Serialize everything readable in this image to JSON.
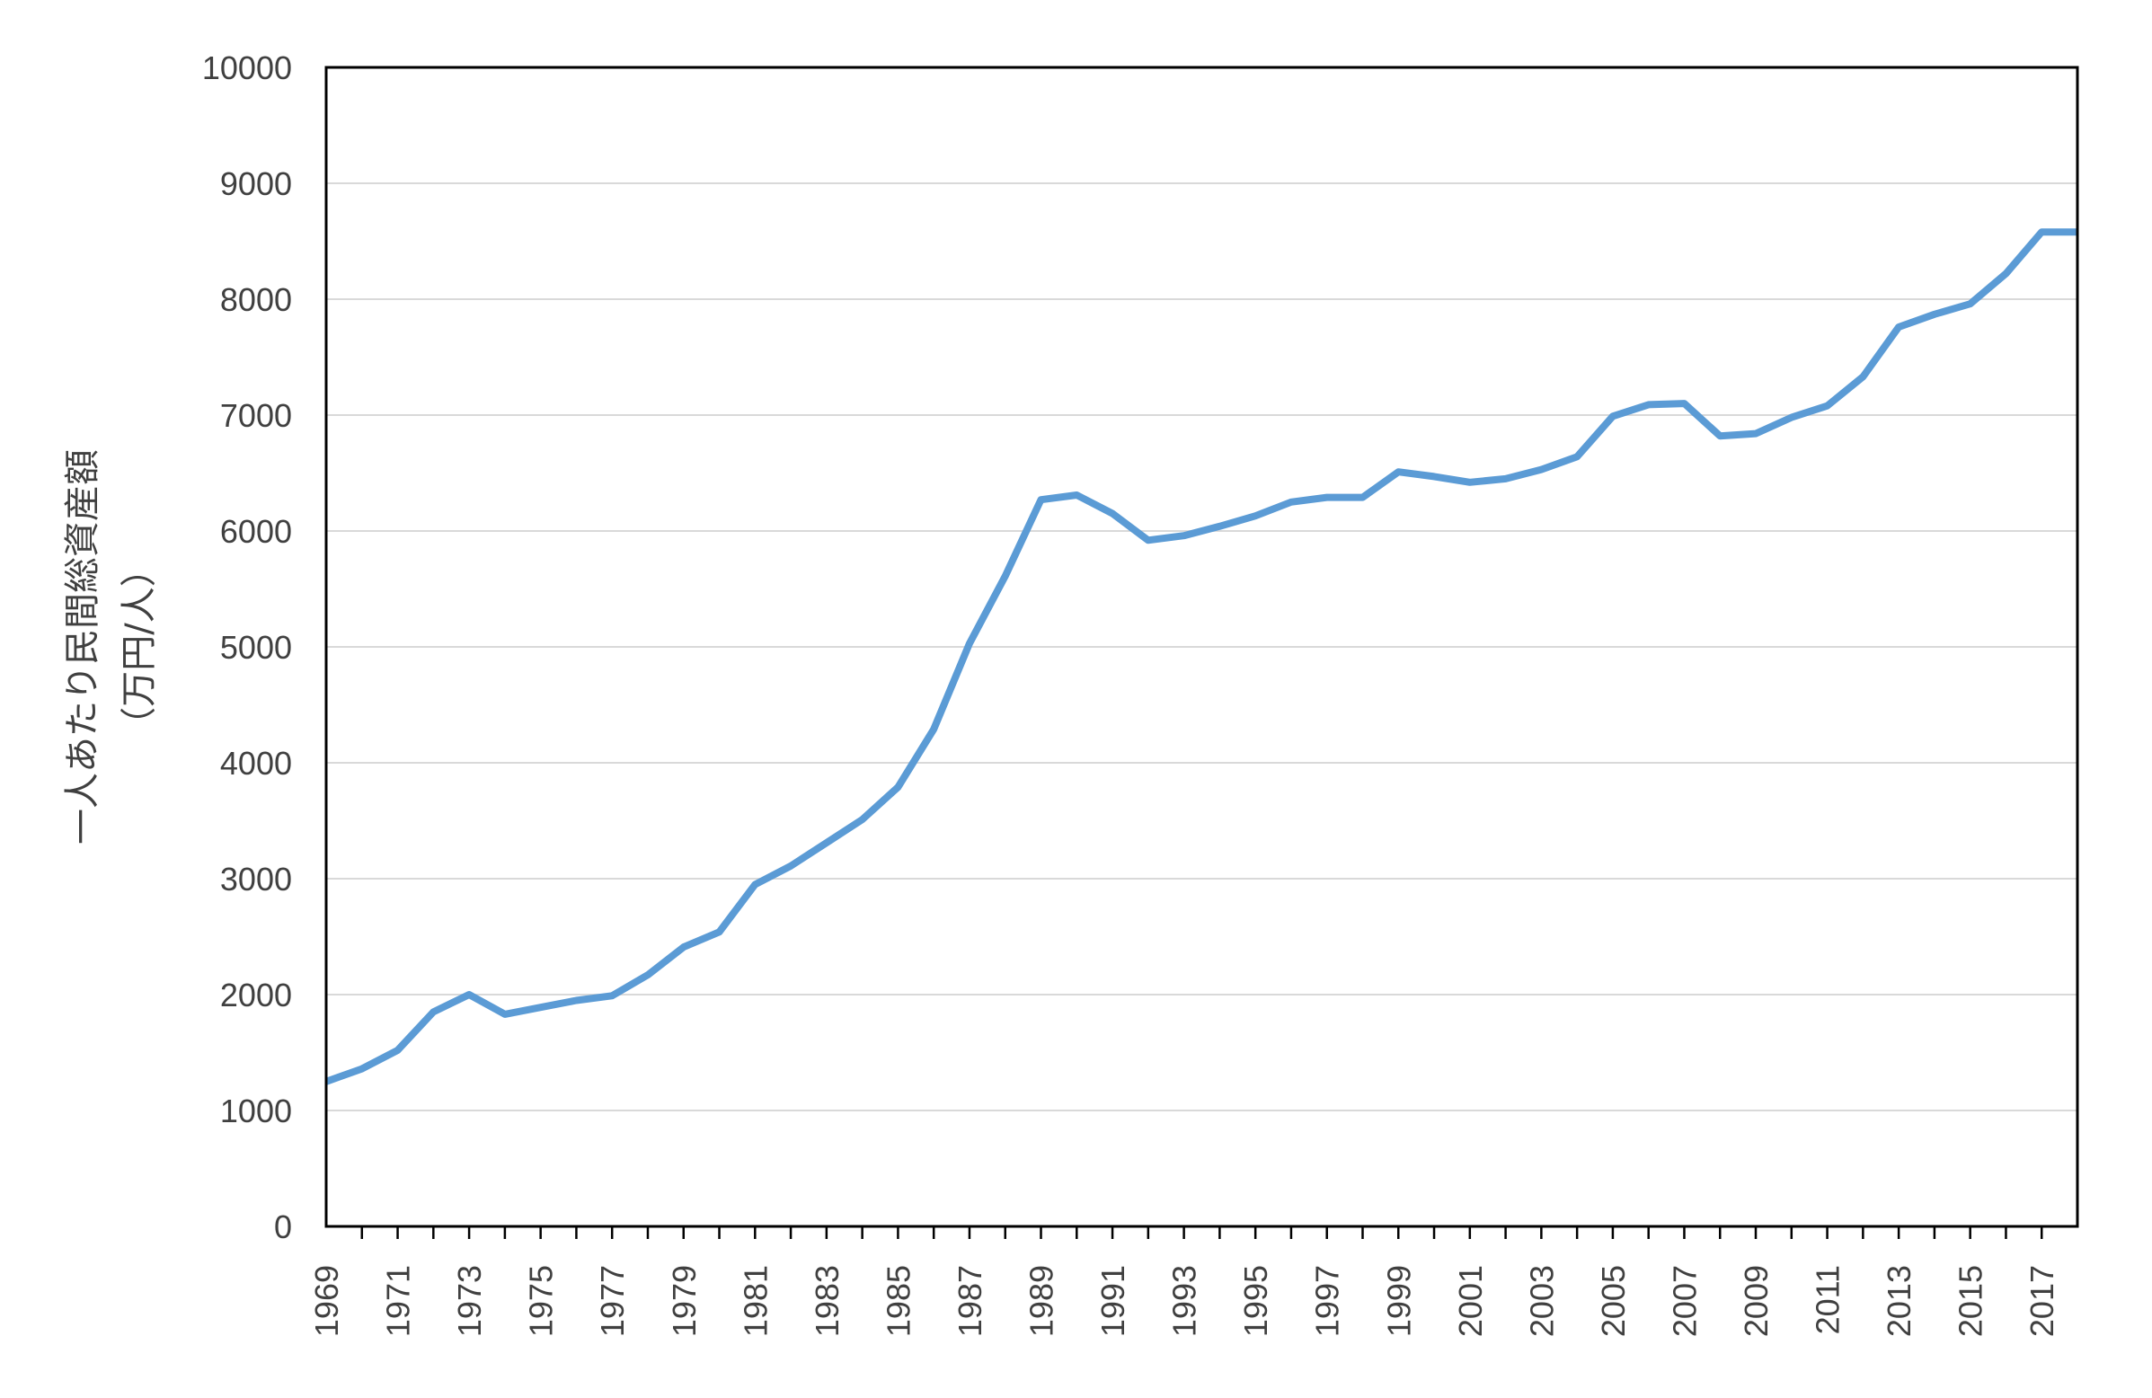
{
  "chart_data": {
    "type": "line",
    "title": "",
    "xlabel": "",
    "ylabel": "一人あたり民間総資産額",
    "ylabel_unit": "（万円/人）",
    "ylim": [
      0,
      10000
    ],
    "yticks": [
      0,
      1000,
      2000,
      3000,
      4000,
      5000,
      6000,
      7000,
      8000,
      9000,
      10000
    ],
    "xlim": [
      1969,
      2018
    ],
    "xtick_labels": [
      "1969",
      "1971",
      "1973",
      "1975",
      "1977",
      "1979",
      "1981",
      "1983",
      "1985",
      "1987",
      "1989",
      "1991",
      "1993",
      "1995",
      "1997",
      "1999",
      "2001",
      "2003",
      "2005",
      "2007",
      "2009",
      "2011",
      "2013",
      "2015",
      "2017"
    ],
    "grid": true,
    "legend": false,
    "line_color": "#5B9BD5",
    "series": [
      {
        "x": [
          1969,
          1970,
          1971,
          1972,
          1973,
          1974,
          1975,
          1976,
          1977,
          1978,
          1979,
          1980,
          1981,
          1982,
          1983,
          1984,
          1985,
          1986,
          1987,
          1988,
          1989,
          1990,
          1991,
          1992,
          1993,
          1994,
          1995,
          1996,
          1997,
          1998,
          1999,
          2000,
          2001,
          2002,
          2003,
          2004,
          2005,
          2006,
          2007,
          2008,
          2009,
          2010,
          2011,
          2012,
          2013,
          2014,
          2015,
          2016,
          2017,
          2018
        ],
        "values": [
          1250,
          1360,
          1520,
          1850,
          2000,
          1830,
          1890,
          1950,
          1990,
          2170,
          2410,
          2540,
          2950,
          3110,
          3310,
          3510,
          3790,
          4290,
          5030,
          5610,
          6270,
          6310,
          6150,
          5920,
          5960,
          6040,
          6130,
          6250,
          6290,
          6290,
          6510,
          6470,
          6420,
          6450,
          6530,
          6640,
          6990,
          7090,
          7100,
          6820,
          6840,
          6980,
          7080,
          7330,
          7760,
          7870,
          7960,
          8220,
          8580,
          8580
        ]
      }
    ]
  }
}
